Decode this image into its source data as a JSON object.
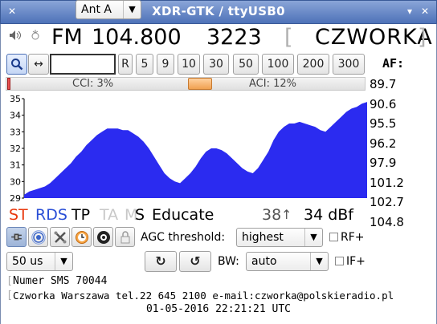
{
  "window": {
    "title": "XDR-GTK / ttyUSB0"
  },
  "tuner": {
    "band": "FM",
    "frequency": "104.800",
    "pi_code": "3223",
    "ps_name": "CZWORKA",
    "bracket_left": "[",
    "bracket_right": "]"
  },
  "step_buttons": [
    "R",
    "5",
    "9",
    "10",
    "30",
    "50",
    "100",
    "200",
    "300"
  ],
  "freq_input": {
    "value": ""
  },
  "af": {
    "label": "AF:",
    "list": [
      "89.7",
      "90.6",
      "95.5",
      "96.2",
      "97.9",
      "101.2",
      "102.7",
      "104.8"
    ]
  },
  "interference": {
    "cci_label": "CCI: 3%",
    "aci_label": "ACI: 12%",
    "aci_level": 0.12,
    "cci_level": 0.03
  },
  "graph": {
    "y_ticks": [
      "35",
      "34",
      "33",
      "32",
      "31",
      "30",
      "29"
    ],
    "y_min": 29,
    "y_max": 35,
    "fill_color": "#2b2bf0",
    "samples": [
      29.2,
      29.4,
      29.5,
      29.6,
      29.7,
      29.9,
      30.2,
      30.5,
      30.8,
      31.1,
      31.5,
      31.8,
      32.2,
      32.5,
      32.8,
      33.0,
      33.2,
      33.2,
      33.2,
      33.1,
      33.1,
      32.9,
      32.7,
      32.4,
      32.0,
      31.5,
      31.0,
      30.5,
      30.2,
      30.0,
      29.9,
      30.2,
      30.5,
      30.9,
      31.4,
      31.8,
      32.0,
      32.0,
      31.9,
      31.7,
      31.4,
      31.1,
      30.8,
      30.6,
      30.5,
      30.8,
      31.3,
      31.8,
      32.5,
      33.0,
      33.3,
      33.5,
      33.5,
      33.6,
      33.5,
      33.4,
      33.3,
      33.1,
      33.0,
      33.3,
      33.6,
      33.9,
      34.2,
      34.4,
      34.5,
      34.7,
      34.8
    ]
  },
  "status": {
    "st": "ST",
    "rds": "RDS",
    "tp": "TP",
    "ta": "TA",
    "ms_m": "M",
    "ms_s": "S",
    "pty": "Educate",
    "signal_num": "38",
    "signal_arrow": "↑",
    "signal_value": "34 dBf",
    "colors": {
      "st": "#e8380d",
      "rds": "#2a4fd6",
      "inactive": "#c8c8c8"
    }
  },
  "controls": {
    "agc_label": "AGC threshold:",
    "agc_value": "highest",
    "rf_label": "RF+",
    "deemphasis": "50 us",
    "antenna": "Ant A",
    "rotate_cw": "↻",
    "rotate_ccw": "↺",
    "bw_label": "BW:",
    "bw_value": "auto",
    "if_label": "IF+"
  },
  "rds_text": {
    "line1": "Numer SMS 70044",
    "line2": "Czworka Warszawa tel.22 645 2100 e-mail:czworka@polskieradio.pl",
    "timestamp": "01-05-2016 22:21:21 UTC"
  }
}
